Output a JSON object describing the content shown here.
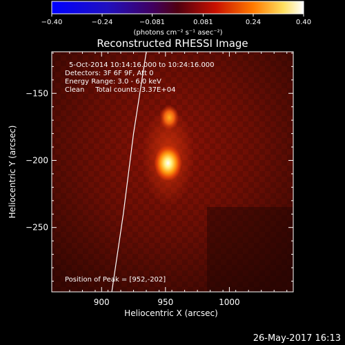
{
  "chart_data": {
    "type": "heatmap",
    "title": "Reconstructed RHESSI Image",
    "xlabel": "Heliocentric X (arcsec)",
    "ylabel": "Heliocentric Y (arcsec)",
    "xlim": [
      861,
      1050
    ],
    "ylim": [
      -298,
      -119
    ],
    "x_ticks": [
      {
        "value": 900,
        "label": "900"
      },
      {
        "value": 950,
        "label": "950"
      },
      {
        "value": 1000,
        "label": "1000"
      }
    ],
    "y_ticks": [
      {
        "value": -150,
        "label": "−150"
      },
      {
        "value": -200,
        "label": "−200"
      },
      {
        "value": -250,
        "label": "−250"
      }
    ],
    "colorbar": {
      "range": [
        -0.4,
        0.4
      ],
      "colormap": "hot (blue-purple-red-yellow-white)",
      "ticks": [
        {
          "value": -0.4,
          "label": "−0.40"
        },
        {
          "value": -0.24,
          "label": "−0.24"
        },
        {
          "value": -0.081,
          "label": "−0.081"
        },
        {
          "value": 0.081,
          "label": "0.081"
        },
        {
          "value": 0.24,
          "label": "0.24"
        },
        {
          "value": 0.4,
          "label": "0.40"
        }
      ],
      "unit_label": "(photons cm⁻² s⁻¹ asec⁻²)"
    },
    "info_lines": [
      "5-Oct-2014 10:14:16.000 to 10:24:16.000",
      "Detectors: 3F 6F 9F, Att 0",
      "Energy Range: 3.0 - 6.0 keV",
      "Clean     Total counts: 3.37E+04"
    ],
    "peak_text": "Position of Peak = [952,-202]",
    "sources": [
      {
        "x": 952,
        "y": -202,
        "value": 0.4
      },
      {
        "x": 953,
        "y": -168,
        "value": 0.18
      }
    ],
    "limb_curve": [
      [
        935,
        -119
      ],
      [
        925,
        -180
      ],
      [
        917,
        -240
      ],
      [
        908,
        -298
      ]
    ],
    "colors": {
      "background": "#000000",
      "text": "#ffffff",
      "limb": "#ffffff"
    }
  },
  "timestamp": "26-May-2017 16:13"
}
